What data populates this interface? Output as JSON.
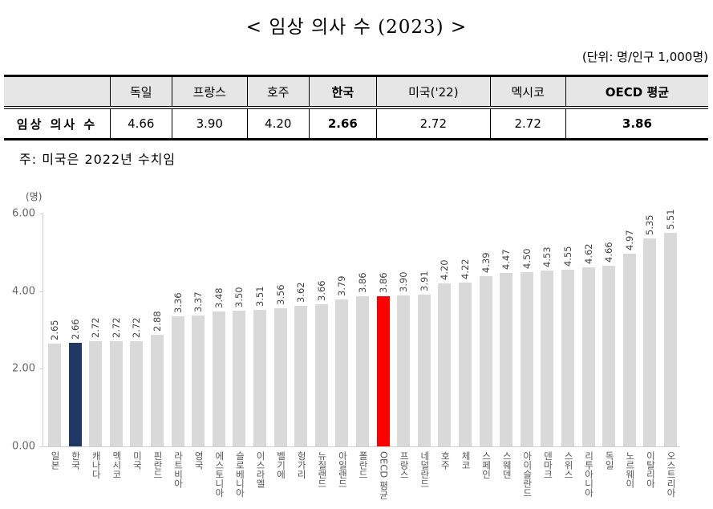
{
  "header": {
    "title": "< 임상 의사 수 (2023) >",
    "unit": "(단위: 명/인구 1,000명)"
  },
  "summary_table": {
    "columns": [
      "",
      "독일",
      "프랑스",
      "호주",
      "한국",
      "미국('22)",
      "멕시코",
      "OECD 평균"
    ],
    "row_label": "임상 의사 수",
    "values": [
      "4.66",
      "3.90",
      "4.20",
      "2.66",
      "2.72",
      "2.72",
      "3.86"
    ],
    "bold_columns": [
      "한국",
      "OECD 평균"
    ]
  },
  "note": "주: 미국은 2022년 수치임",
  "chart_data": {
    "type": "bar",
    "title": "임상 의사 수 (2023)",
    "xlabel": "",
    "ylabel": "(명)",
    "ylim": [
      0,
      6
    ],
    "yticks": [
      "0.00",
      "2.00",
      "4.00",
      "6.00"
    ],
    "grid": false,
    "legend": null,
    "highlight_colors": {
      "default": "#d9d9d9",
      "한국": "#1f3864",
      "OECD 평균": "#ff0000"
    },
    "categories": [
      "일본",
      "한국",
      "캐나다",
      "멕시코",
      "미국",
      "핀란드",
      "라트비아",
      "영국",
      "에스토니아",
      "슬로베니아",
      "이스라엘",
      "벨기에",
      "헝가리",
      "뉴질랜드",
      "아일랜드",
      "폴란드",
      "OECD 평균",
      "프랑스",
      "네덜란드",
      "호주",
      "체코",
      "스페인",
      "스웨덴",
      "아이슬란드",
      "덴마크",
      "스위스",
      "리투아니아",
      "독일",
      "노르웨이",
      "이탈리아",
      "오스트리아"
    ],
    "values": [
      2.65,
      2.66,
      2.72,
      2.72,
      2.72,
      2.88,
      3.36,
      3.37,
      3.48,
      3.5,
      3.51,
      3.56,
      3.62,
      3.66,
      3.79,
      3.86,
      3.86,
      3.9,
      3.91,
      4.2,
      4.22,
      4.39,
      4.47,
      4.5,
      4.53,
      4.55,
      4.62,
      4.66,
      4.97,
      5.35,
      5.51
    ],
    "labels": [
      "2.65",
      "2.66",
      "2.72",
      "2.72",
      "2.72",
      "2.88",
      "3.36",
      "3.37",
      "3.48",
      "3.50",
      "3.51",
      "3.56",
      "3.62",
      "3.66",
      "3.79",
      "3.86",
      "3.86",
      "3.90",
      "3.91",
      "4.20",
      "4.22",
      "4.39",
      "4.47",
      "4.50",
      "4.53",
      "4.55",
      "4.62",
      "4.66",
      "4.97",
      "5.35",
      "5.51"
    ]
  }
}
